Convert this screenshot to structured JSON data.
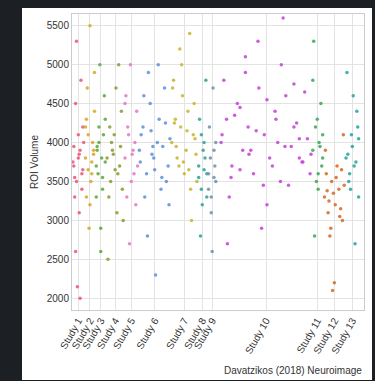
{
  "chart_data": {
    "type": "scatter",
    "y_label": "ROI Volume",
    "annotations": [
      "Davatzikos (2018) Neuroimage"
    ],
    "grid": true,
    "xlim": [
      0,
      325
    ],
    "ylim": [
      1850,
      5650
    ],
    "yticks": [
      2000,
      2500,
      3000,
      3500,
      4000,
      4500,
      5000,
      5500
    ],
    "xticks": [
      {
        "value": 7,
        "label": "Study 1"
      },
      {
        "value": 20,
        "label": "Study 2"
      },
      {
        "value": 32,
        "label": "Study 3"
      },
      {
        "value": 48,
        "label": "Study 4"
      },
      {
        "value": 66,
        "label": "Study 5"
      },
      {
        "value": 92,
        "label": "Study 6"
      },
      {
        "value": 125,
        "label": "Study 7"
      },
      {
        "value": 145,
        "label": "Study 8"
      },
      {
        "value": 156,
        "label": "Study 9"
      },
      {
        "value": 216,
        "label": "Study 10"
      },
      {
        "value": 273,
        "label": "Study 11"
      },
      {
        "value": 292,
        "label": "Study 12"
      },
      {
        "value": 312,
        "label": "Study 13"
      }
    ],
    "series": [
      {
        "color": "#e8557a",
        "x": [
          2,
          5,
          9,
          12,
          3,
          7,
          11,
          4,
          8,
          13,
          1,
          6,
          10,
          3,
          9,
          12,
          5,
          7,
          2,
          11,
          8,
          4
        ],
        "values": [
          3700,
          3500,
          3900,
          4200,
          3300,
          3800,
          3600,
          4500,
          3100,
          4000,
          3750,
          2150,
          4800,
          3550,
          2000,
          3650,
          5300,
          4100,
          3950,
          3400,
          3850,
          2600
        ]
      },
      {
        "color": "#d9a520",
        "x": [
          15,
          18,
          22,
          25,
          16,
          20,
          24,
          17,
          21,
          23,
          19,
          15,
          22,
          18,
          25,
          20,
          16,
          24
        ],
        "values": [
          3800,
          4100,
          3600,
          4400,
          3300,
          5500,
          3900,
          4700,
          3500,
          4000,
          2900,
          4200,
          3750,
          3650,
          4900,
          3200,
          4300,
          3850
        ]
      },
      {
        "color": "#5aa832",
        "x": [
          27,
          30,
          34,
          37,
          28,
          32,
          36,
          29,
          33,
          35,
          31,
          27,
          34,
          30,
          37,
          32,
          28
        ],
        "values": [
          3700,
          4000,
          3400,
          4300,
          3900,
          2600,
          4600,
          3600,
          3800,
          4100,
          5000,
          3300,
          3550,
          4200,
          3750,
          2900,
          3950
        ]
      },
      {
        "color": "#8a9a2f",
        "x": [
          39,
          43,
          47,
          51,
          55,
          41,
          45,
          49,
          53,
          57,
          40,
          44,
          48,
          52,
          56,
          42,
          46,
          50,
          54
        ],
        "values": [
          3800,
          3500,
          4100,
          3600,
          4400,
          3300,
          3900,
          4700,
          3700,
          3000,
          2500,
          4000,
          3650,
          5000,
          3400,
          4200,
          3850,
          3100,
          3950
        ]
      },
      {
        "color": "#e377c2",
        "x": [
          59,
          62,
          66,
          70,
          73,
          60,
          64,
          68,
          72,
          61,
          65,
          69,
          63,
          67,
          71,
          59
        ],
        "values": [
          3800,
          4200,
          3500,
          4000,
          3700,
          4600,
          2700,
          3900,
          4400,
          3300,
          5000,
          3600,
          4100,
          3850,
          3200,
          4500
        ]
      },
      {
        "color": "#5b8fd9",
        "x": [
          75,
          79,
          83,
          87,
          91,
          95,
          99,
          103,
          107,
          77,
          81,
          85,
          89,
          93,
          97,
          101,
          105,
          109,
          76,
          80,
          84,
          88,
          92,
          96,
          100,
          104,
          108,
          90
        ],
        "values": [
          3900,
          4200,
          3600,
          4500,
          3800,
          4000,
          3400,
          4700,
          3700,
          4100,
          3300,
          4900,
          3850,
          2300,
          4300,
          3950,
          3500,
          4050,
          3750,
          4600,
          2800,
          4150,
          3650,
          5000,
          3550,
          4250,
          3200,
          3950
        ]
      },
      {
        "color": "#c5b52a",
        "x": [
          111,
          115,
          119,
          123,
          127,
          131,
          135,
          139,
          113,
          117,
          121,
          125,
          129,
          133,
          137,
          112,
          116,
          120,
          124,
          128,
          132,
          136,
          138,
          114,
          122,
          130
        ],
        "values": [
          4000,
          4300,
          3700,
          4600,
          3900,
          5400,
          4100,
          3500,
          4800,
          3800,
          4200,
          3600,
          4400,
          3000,
          4050,
          4700,
          3950,
          5200,
          3750,
          4150,
          3400,
          4500,
          3850,
          4250,
          5000,
          3650
        ]
      },
      {
        "color": "#2aa198",
        "x": [
          141,
          144,
          147,
          150,
          142,
          145,
          148,
          143,
          146,
          149,
          141,
          147,
          144,
          150
        ],
        "values": [
          3700,
          3400,
          4000,
          3600,
          4300,
          3200,
          3800,
          2800,
          3900,
          4800,
          3550,
          3650,
          4100,
          3300
        ]
      },
      {
        "color": "#6f8fa8",
        "x": [
          152,
          155,
          158,
          160,
          153,
          156,
          159,
          154,
          157,
          152,
          158,
          155,
          160
        ],
        "values": [
          3600,
          3300,
          3900,
          3500,
          4200,
          2600,
          3700,
          3800,
          4700,
          3400,
          3550,
          3100,
          4000
        ]
      },
      {
        "color": "#c43fd6",
        "x": [
          166,
          172,
          178,
          184,
          190,
          196,
          202,
          208,
          214,
          220,
          226,
          232,
          238,
          244,
          250,
          256,
          262,
          266,
          169,
          175,
          181,
          187,
          193,
          199,
          205,
          211,
          217,
          223,
          229,
          235,
          241,
          247,
          253,
          259,
          265,
          167,
          177,
          187,
          197,
          207,
          217,
          227,
          237,
          247,
          257,
          173,
          193,
          213,
          233,
          253
        ],
        "values": [
          4000,
          4300,
          3700,
          4500,
          3900,
          4200,
          3600,
          4700,
          4100,
          3800,
          4400,
          3500,
          4600,
          3950,
          4250,
          3750,
          4050,
          3850,
          4800,
          3300,
          4350,
          3650,
          5100,
          3900,
          4150,
          2900,
          4550,
          3700,
          4000,
          5600,
          3450,
          4200,
          3800,
          4650,
          3600,
          4100,
          3550,
          4450,
          3850,
          5300,
          3200,
          4300,
          3950,
          4750,
          3750,
          2700,
          4900,
          3450,
          5000,
          4050
        ]
      },
      {
        "color": "#3aa655",
        "x": [
          268,
          271,
          274,
          277,
          279,
          269,
          272,
          275,
          278,
          270,
          273,
          276,
          268,
          274,
          279
        ],
        "values": [
          3900,
          4200,
          3600,
          4500,
          3800,
          5300,
          3500,
          4000,
          3700,
          2800,
          4300,
          3950,
          4800,
          3400,
          4100
        ]
      },
      {
        "color": "#d2691e",
        "x": [
          281,
          285,
          289,
          293,
          297,
          301,
          283,
          287,
          291,
          295,
          299,
          303,
          282,
          286,
          290,
          294,
          298,
          302,
          284,
          292,
          300,
          288
        ],
        "values": [
          3300,
          3100,
          3500,
          3200,
          3400,
          3000,
          3600,
          2800,
          3350,
          3700,
          3150,
          3450,
          3900,
          3250,
          2100,
          3550,
          3050,
          4100,
          3380,
          2200,
          3650,
          2900
        ]
      },
      {
        "color": "#20a39e",
        "x": [
          305,
          308,
          311,
          314,
          317,
          319,
          306,
          309,
          312,
          315,
          318,
          307,
          310,
          313,
          316,
          319
        ],
        "values": [
          3800,
          3500,
          4100,
          3700,
          4400,
          3300,
          4900,
          3600,
          3950,
          2700,
          4200,
          3850,
          3400,
          4600,
          3750,
          4050
        ]
      }
    ]
  }
}
